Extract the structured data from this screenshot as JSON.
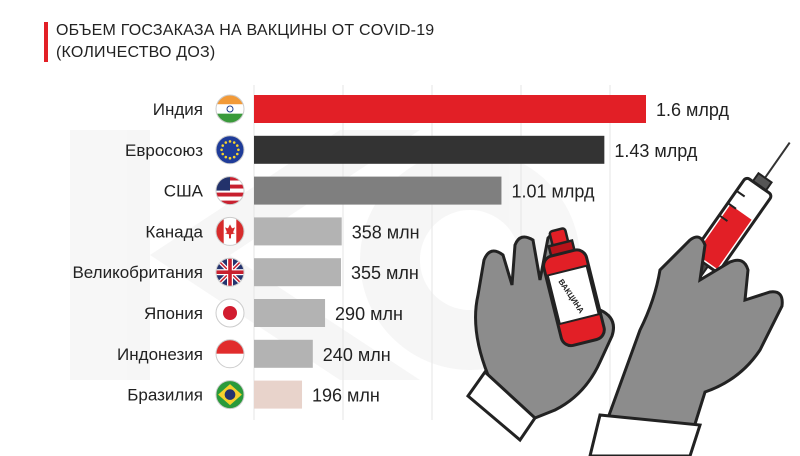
{
  "title_line1": "ОБЪЕМ ГОСЗАКАЗА НА ВАКЦИНЫ ОТ COVID-19",
  "title_line2": "(КОЛИЧЕСТВО ДОЗ)",
  "illustration": {
    "icons": [
      "glove-icon",
      "vaccine-vial-icon",
      "syringe-icon"
    ],
    "vial_label": "ВАКЦИНА"
  },
  "chart_data": {
    "type": "bar",
    "orientation": "horizontal",
    "unit": "doses",
    "categories": [
      "Индия",
      "Евросоюз",
      "США",
      "Канада",
      "Великобритания",
      "Япония",
      "Индонезия",
      "Бразилия"
    ],
    "values": [
      1600000000,
      1430000000,
      1010000000,
      358000000,
      355000000,
      290000000,
      240000000,
      196000000
    ],
    "value_labels": [
      "1.6 млрд",
      "1.43 млрд",
      "1.01 млрд",
      "358 млн",
      "355 млн",
      "290 млн",
      "240 млн",
      "196 млн"
    ],
    "flags": [
      "india-flag-icon",
      "eu-flag-icon",
      "usa-flag-icon",
      "canada-flag-icon",
      "uk-flag-icon",
      "japan-flag-icon",
      "indonesia-flag-icon",
      "brazil-flag-icon"
    ],
    "bar_colors": [
      "#e21f26",
      "#333333",
      "#7f7f7f",
      "#b3b3b3",
      "#b3b3b3",
      "#b3b3b3",
      "#b3b3b3",
      "#e8d3cb"
    ],
    "xlim": [
      0,
      2000000000
    ],
    "grid": true
  }
}
